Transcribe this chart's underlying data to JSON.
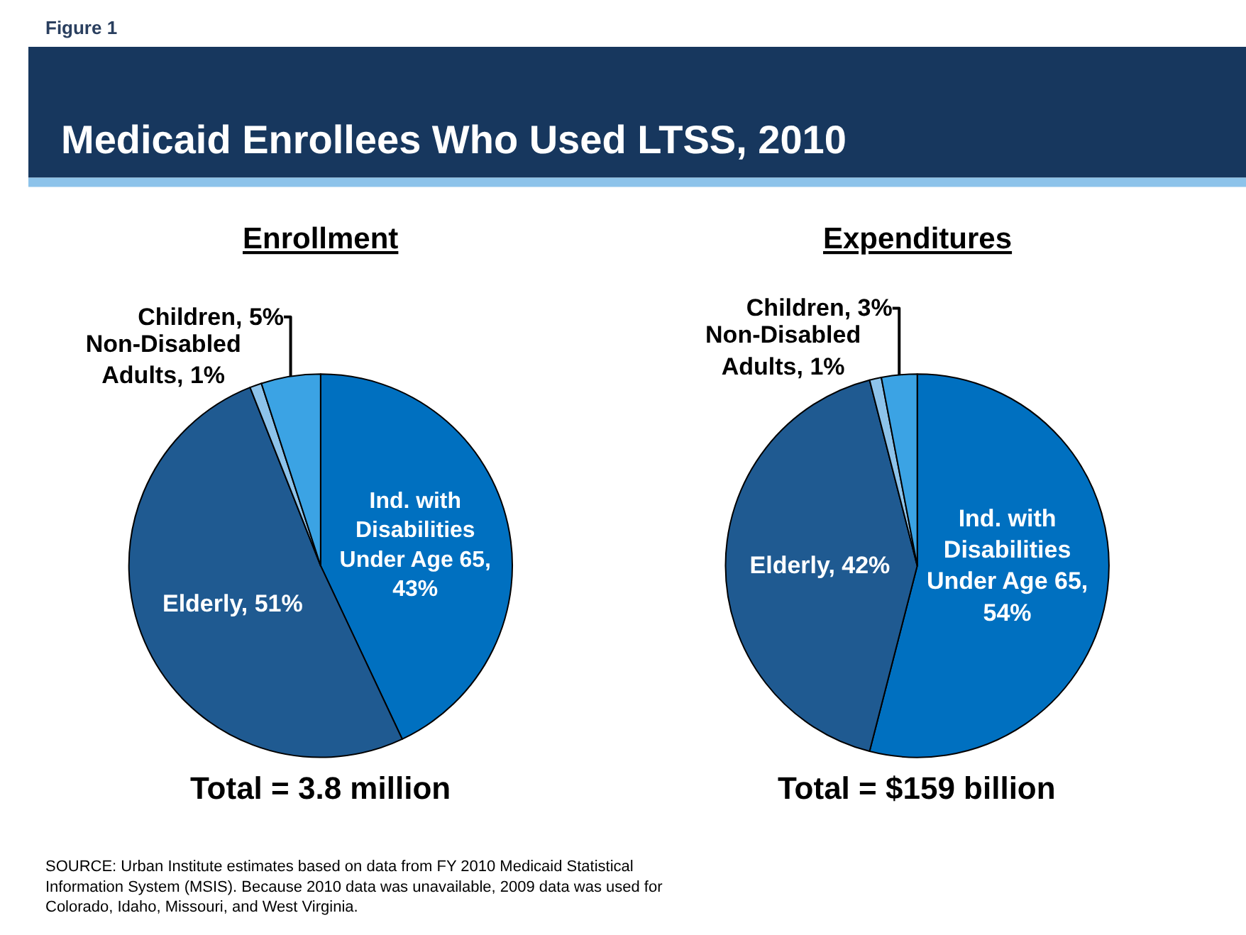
{
  "chart_data": [
    {
      "type": "pie",
      "title": "Enrollment",
      "categories": [
        "Ind. with Disabilities Under Age 65, 43%",
        "Elderly, 51%",
        "Non-Disabled Adults, 1%",
        "Children, 5%"
      ],
      "values": [
        43,
        51,
        1,
        5
      ],
      "colors": [
        "#0070c0",
        "#1f5a91",
        "#8dc3ea",
        "#3ba3e4"
      ],
      "annotations": [
        "Figure 1",
        "Medicaid Enrollees Who Used LTSS, 2010",
        "Total = 3.8 million",
        "SOURCE: Urban Institute estimates based on data from FY 2010 Medicaid Statistical Information System (MSIS). Because 2010 data was unavailable, 2009 data was used for Colorado, Idaho, Missouri, and West Virginia."
      ]
    },
    {
      "type": "pie",
      "title": "Expenditures",
      "categories": [
        "Ind. with Disabilities Under Age 65, 54%",
        "Elderly, 42%",
        "Non-Disabled Adults, 1%",
        "Children, 3%"
      ],
      "values": [
        54,
        42,
        1,
        3
      ],
      "colors": [
        "#0070c0",
        "#1f5a91",
        "#8dc3ea",
        "#3ba3e4"
      ],
      "annotations": [
        "Total = $159 billion"
      ]
    }
  ]
}
